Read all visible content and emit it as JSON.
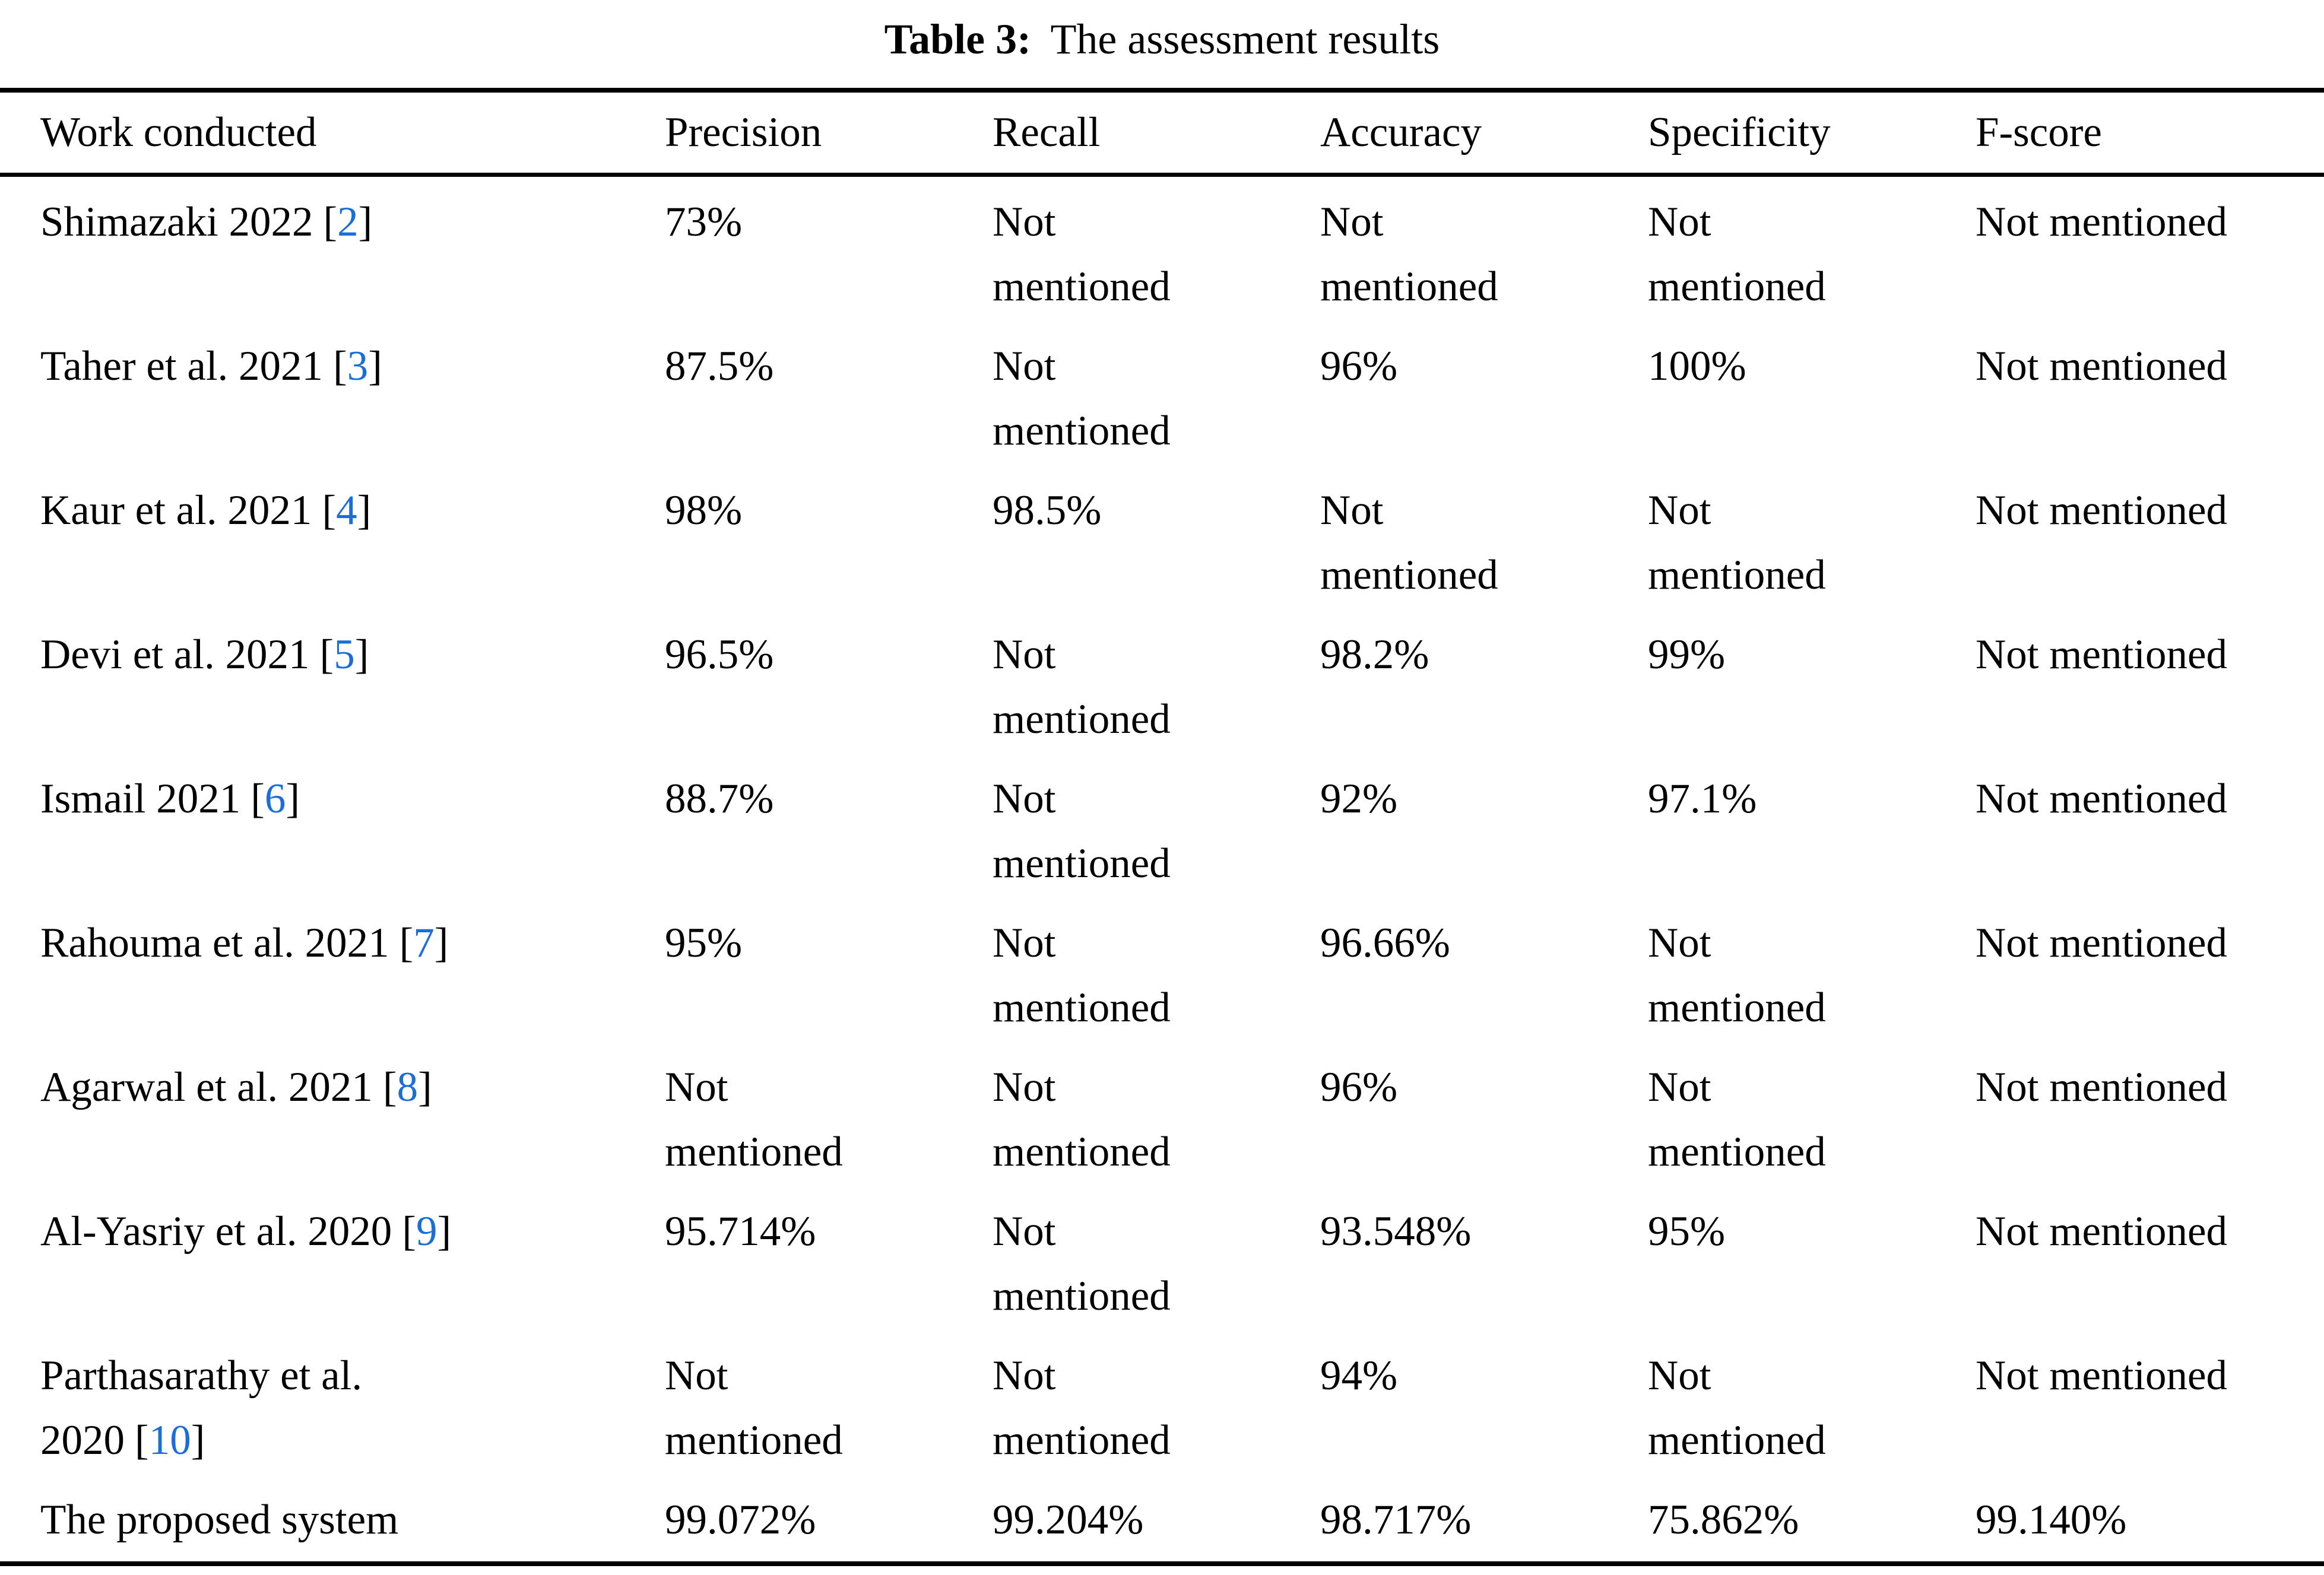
{
  "title": {
    "label": "Table 3:",
    "text": "The assessment results"
  },
  "columns": {
    "work": "Work conducted",
    "precision": "Precision",
    "recall": "Recall",
    "accuracy": "Accuracy",
    "specificity": "Specificity",
    "fscore": "F-score"
  },
  "punct": {
    "open": "[",
    "close": "]"
  },
  "rows": [
    {
      "work": "Shimazaki 2022",
      "cite": "2",
      "work2": "",
      "precision": "73%",
      "recall": "Not mentioned",
      "accuracy": "Not mentioned",
      "specificity": "Not mentioned",
      "fscore": "Not mentioned"
    },
    {
      "work": "Taher et al. 2021",
      "cite": "3",
      "work2": "",
      "precision": "87.5%",
      "recall": "Not mentioned",
      "accuracy": "96%",
      "specificity": "100%",
      "fscore": "Not mentioned"
    },
    {
      "work": "Kaur et al. 2021",
      "cite": "4",
      "work2": "",
      "precision": "98%",
      "recall": "98.5%",
      "accuracy": "Not mentioned",
      "specificity": "Not mentioned",
      "fscore": "Not mentioned"
    },
    {
      "work": "Devi et al. 2021",
      "cite": "5",
      "work2": "",
      "precision": "96.5%",
      "recall": "Not mentioned",
      "accuracy": "98.2%",
      "specificity": "99%",
      "fscore": "Not mentioned"
    },
    {
      "work": "Ismail 2021",
      "cite": "6",
      "work2": "",
      "precision": "88.7%",
      "recall": "Not mentioned",
      "accuracy": "92%",
      "specificity": "97.1%",
      "fscore": "Not mentioned"
    },
    {
      "work": "Rahouma et al. 2021",
      "cite": "7",
      "work2": "",
      "precision": "95%",
      "recall": "Not mentioned",
      "accuracy": "96.66%",
      "specificity": "Not mentioned",
      "fscore": "Not mentioned"
    },
    {
      "work": "Agarwal et al. 2021",
      "cite": "8",
      "work2": "",
      "precision": "Not mentioned",
      "recall": "Not mentioned",
      "accuracy": "96%",
      "specificity": "Not mentioned",
      "fscore": "Not mentioned"
    },
    {
      "work": "Al-Yasriy et al. 2020",
      "cite": "9",
      "work2": "",
      "precision": "95.714%",
      "recall": "Not mentioned",
      "accuracy": "93.548%",
      "specificity": "95%",
      "fscore": "Not mentioned"
    },
    {
      "work": "Parthasarathy et al.",
      "cite": "10",
      "work2": "2020",
      "precision": "Not mentioned",
      "recall": "Not mentioned",
      "accuracy": "94%",
      "specificity": "Not mentioned",
      "fscore": "Not mentioned"
    },
    {
      "work": "The proposed system",
      "cite": "",
      "work2": "",
      "precision": "99.072%",
      "recall": "99.204%",
      "accuracy": "98.717%",
      "specificity": "75.862%",
      "fscore": "99.140%"
    }
  ],
  "colors": {
    "link_blue": "#1b6ed6"
  }
}
